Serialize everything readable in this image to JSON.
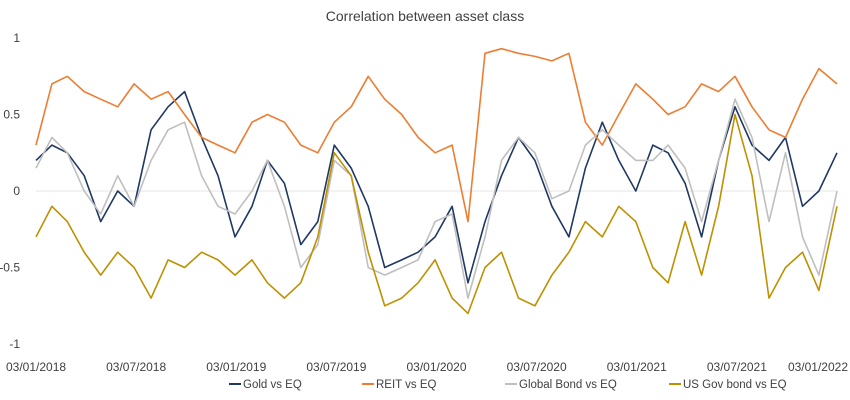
{
  "chart_data": {
    "type": "line",
    "title": "Correlation between asset class",
    "xlabel": "",
    "ylabel": "",
    "xlim": [
      "2018-01-03",
      "2022-01-03"
    ],
    "ylim": [
      -1,
      1
    ],
    "y_ticks": [
      "1",
      "0.5",
      "0",
      "-0.5",
      "-1"
    ],
    "x_ticks": [
      "03/01/2018",
      "03/07/2018",
      "03/01/2019",
      "03/07/2019",
      "03/01/2020",
      "03/07/2020",
      "03/01/2021",
      "03/07/2021",
      "03/01/2022"
    ],
    "grid": false,
    "legend_position": "bottom",
    "x": [
      "2018-01-03",
      "2018-02-01",
      "2018-03-01",
      "2018-04-01",
      "2018-05-01",
      "2018-06-01",
      "2018-07-01",
      "2018-08-01",
      "2018-09-01",
      "2018-10-01",
      "2018-11-01",
      "2018-12-01",
      "2019-01-01",
      "2019-02-01",
      "2019-03-01",
      "2019-04-01",
      "2019-05-01",
      "2019-06-01",
      "2019-07-01",
      "2019-08-01",
      "2019-09-01",
      "2019-10-01",
      "2019-11-01",
      "2019-12-01",
      "2020-01-01",
      "2020-02-01",
      "2020-03-01",
      "2020-04-01",
      "2020-05-01",
      "2020-06-01",
      "2020-07-01",
      "2020-08-01",
      "2020-09-01",
      "2020-10-01",
      "2020-11-01",
      "2020-12-01",
      "2021-01-01",
      "2021-02-01",
      "2021-03-01",
      "2021-04-01",
      "2021-05-01",
      "2021-06-01",
      "2021-07-01",
      "2021-08-01",
      "2021-09-01",
      "2021-10-01",
      "2021-11-01",
      "2021-12-01",
      "2022-01-03"
    ],
    "series": [
      {
        "name": "Gold vs EQ",
        "color": "#1f3864",
        "values": [
          0.2,
          0.3,
          0.25,
          0.1,
          -0.2,
          0.0,
          -0.1,
          0.4,
          0.55,
          0.65,
          0.35,
          0.1,
          -0.3,
          -0.1,
          0.2,
          0.05,
          -0.35,
          -0.2,
          0.3,
          0.15,
          -0.1,
          -0.5,
          -0.45,
          -0.4,
          -0.3,
          -0.1,
          -0.6,
          -0.2,
          0.1,
          0.35,
          0.2,
          -0.1,
          -0.3,
          0.15,
          0.45,
          0.2,
          0.0,
          0.3,
          0.25,
          0.05,
          -0.3,
          0.2,
          0.55,
          0.3,
          0.2,
          0.35,
          -0.1,
          0.0,
          0.25
        ]
      },
      {
        "name": "REIT vs EQ",
        "color": "#ed7d31",
        "values": [
          0.3,
          0.7,
          0.75,
          0.65,
          0.6,
          0.55,
          0.7,
          0.6,
          0.65,
          0.5,
          0.35,
          0.3,
          0.25,
          0.45,
          0.5,
          0.45,
          0.3,
          0.25,
          0.45,
          0.55,
          0.75,
          0.6,
          0.5,
          0.35,
          0.25,
          0.3,
          -0.2,
          0.9,
          0.93,
          0.9,
          0.88,
          0.85,
          0.9,
          0.45,
          0.3,
          0.5,
          0.7,
          0.6,
          0.5,
          0.55,
          0.7,
          0.65,
          0.75,
          0.55,
          0.4,
          0.35,
          0.6,
          0.8,
          0.7
        ]
      },
      {
        "name": "Global Bond vs EQ",
        "color": "#bfbfbf",
        "values": [
          0.15,
          0.35,
          0.25,
          0.0,
          -0.15,
          0.1,
          -0.1,
          0.2,
          0.4,
          0.45,
          0.1,
          -0.1,
          -0.15,
          0.0,
          0.2,
          -0.1,
          -0.5,
          -0.35,
          0.2,
          0.1,
          -0.5,
          -0.55,
          -0.5,
          -0.45,
          -0.2,
          -0.15,
          -0.7,
          -0.3,
          0.2,
          0.35,
          0.25,
          -0.05,
          0.0,
          0.3,
          0.4,
          0.3,
          0.2,
          0.2,
          0.3,
          0.15,
          -0.2,
          0.2,
          0.6,
          0.35,
          -0.2,
          0.25,
          -0.3,
          -0.55,
          0.0
        ]
      },
      {
        "name": "US Gov bond vs EQ",
        "color": "#bf9000",
        "values": [
          -0.3,
          -0.1,
          -0.2,
          -0.4,
          -0.55,
          -0.4,
          -0.5,
          -0.7,
          -0.45,
          -0.5,
          -0.4,
          -0.45,
          -0.55,
          -0.45,
          -0.6,
          -0.7,
          -0.6,
          -0.3,
          0.25,
          0.1,
          -0.4,
          -0.75,
          -0.7,
          -0.6,
          -0.45,
          -0.7,
          -0.8,
          -0.5,
          -0.4,
          -0.7,
          -0.75,
          -0.55,
          -0.4,
          -0.2,
          -0.3,
          -0.1,
          -0.2,
          -0.5,
          -0.6,
          -0.2,
          -0.55,
          -0.1,
          0.5,
          0.1,
          -0.7,
          -0.5,
          -0.4,
          -0.65,
          -0.1
        ]
      }
    ]
  }
}
